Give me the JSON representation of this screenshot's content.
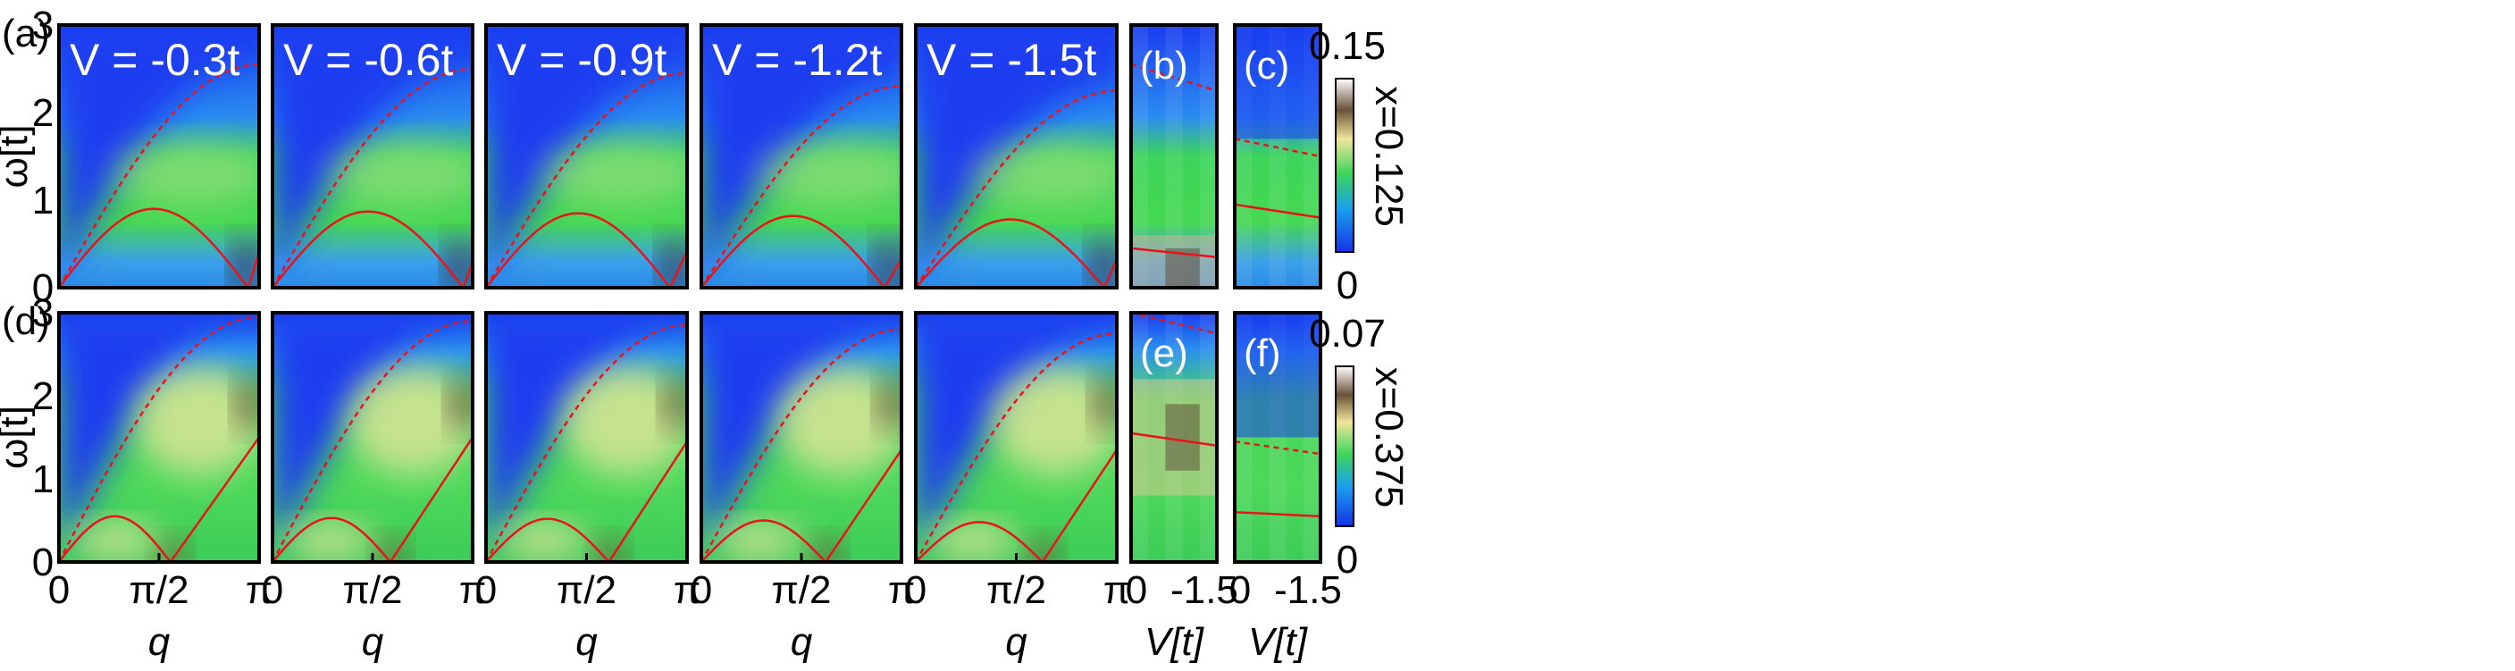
{
  "chart_data": [
    {
      "type": "heatmap",
      "row_tag": "(a)",
      "x_range": [
        0,
        3.14159
      ],
      "y_range": [
        0,
        3
      ],
      "xticks": [
        "0",
        "π/2",
        "π"
      ],
      "yticks": [
        "0",
        "1",
        "2",
        "3"
      ],
      "ylabel": "ω[t]",
      "colorbar": {
        "max_label": "0.15",
        "min_label": "0",
        "label": "x=0.125"
      },
      "panels": [
        {
          "label": "V = -0.3t",
          "V": -0.3,
          "dashed_max": 2.55,
          "solid_peak": 0.9,
          "solid_peak_q": 1.25,
          "solid_zero_q": 2.97,
          "solid_end": 0.4
        },
        {
          "label": "V = -0.6t",
          "V": -0.6,
          "dashed_max": 2.5,
          "solid_peak": 0.87,
          "solid_peak_q": 1.3,
          "solid_zero_q": 3.0,
          "solid_end": 0.3
        },
        {
          "label": "V = -0.9t",
          "V": -0.9,
          "dashed_max": 2.45,
          "solid_peak": 0.85,
          "solid_peak_q": 1.32,
          "solid_zero_q": 2.88,
          "solid_end": 0.42
        },
        {
          "label": "V = -1.2t",
          "V": -1.2,
          "dashed_max": 2.3,
          "solid_peak": 0.82,
          "solid_peak_q": 1.4,
          "solid_zero_q": 2.88,
          "solid_end": 0.33
        },
        {
          "label": "V = -1.5t",
          "V": -1.5,
          "dashed_max": 2.25,
          "solid_peak": 0.78,
          "solid_peak_q": 1.42,
          "solid_zero_q": 2.95,
          "solid_end": 0.33
        }
      ],
      "side_panels": [
        {
          "label": "(b)",
          "dashed": [
            2.55,
            2.25
          ],
          "solid": [
            0.45,
            0.35
          ]
        },
        {
          "label": "(c)",
          "dashed": [
            1.7,
            1.5
          ],
          "solid": [
            0.95,
            0.8
          ]
        }
      ]
    },
    {
      "type": "heatmap",
      "row_tag": "(d)",
      "x_range": [
        0,
        3.14159
      ],
      "y_range": [
        0,
        3
      ],
      "xticks": [
        "0",
        "π/2",
        "π"
      ],
      "yticks": [
        "0",
        "1",
        "2",
        "3"
      ],
      "xlabel": "q",
      "ylabel": "ω[t]",
      "colorbar": {
        "max_label": "0.07",
        "min_label": "0",
        "label": "x=0.375"
      },
      "panels": [
        {
          "V": -0.3,
          "dashed_max": 2.95,
          "solid_peak": 0.55,
          "solid_peak_q": 0.9,
          "solid_zero_q": 1.75,
          "solid_end": 1.5
        },
        {
          "V": -0.6,
          "dashed_max": 2.9,
          "solid_peak": 0.53,
          "solid_peak_q": 0.95,
          "solid_zero_q": 1.85,
          "solid_end": 1.5
        },
        {
          "V": -0.9,
          "dashed_max": 2.85,
          "solid_peak": 0.52,
          "solid_peak_q": 0.95,
          "solid_zero_q": 1.92,
          "solid_end": 1.45
        },
        {
          "V": -1.2,
          "dashed_max": 2.8,
          "solid_peak": 0.5,
          "solid_peak_q": 0.98,
          "solid_zero_q": 1.95,
          "solid_end": 1.35
        },
        {
          "V": -1.5,
          "dashed_max": 2.75,
          "solid_peak": 0.48,
          "solid_peak_q": 1.0,
          "solid_zero_q": 1.98,
          "solid_end": 1.35
        }
      ],
      "side_panels": [
        {
          "label": "(e)",
          "dashed": [
            3.0,
            2.75
          ],
          "solid": [
            1.55,
            1.4
          ],
          "xlabel": "V[t]",
          "xticks": [
            "0",
            "-1.5"
          ]
        },
        {
          "label": "(f)",
          "dashed": [
            1.45,
            1.3
          ],
          "solid": [
            0.6,
            0.55
          ],
          "xlabel": "V[t]",
          "xticks": [
            "0",
            "-1.5"
          ]
        }
      ]
    }
  ],
  "colors": {
    "curve": "#e8141c",
    "map_low": "#1a3cf0",
    "map_mid": "#3cd45a",
    "map_high": "#f0e6a0",
    "map_peak": "#3a2a20"
  }
}
